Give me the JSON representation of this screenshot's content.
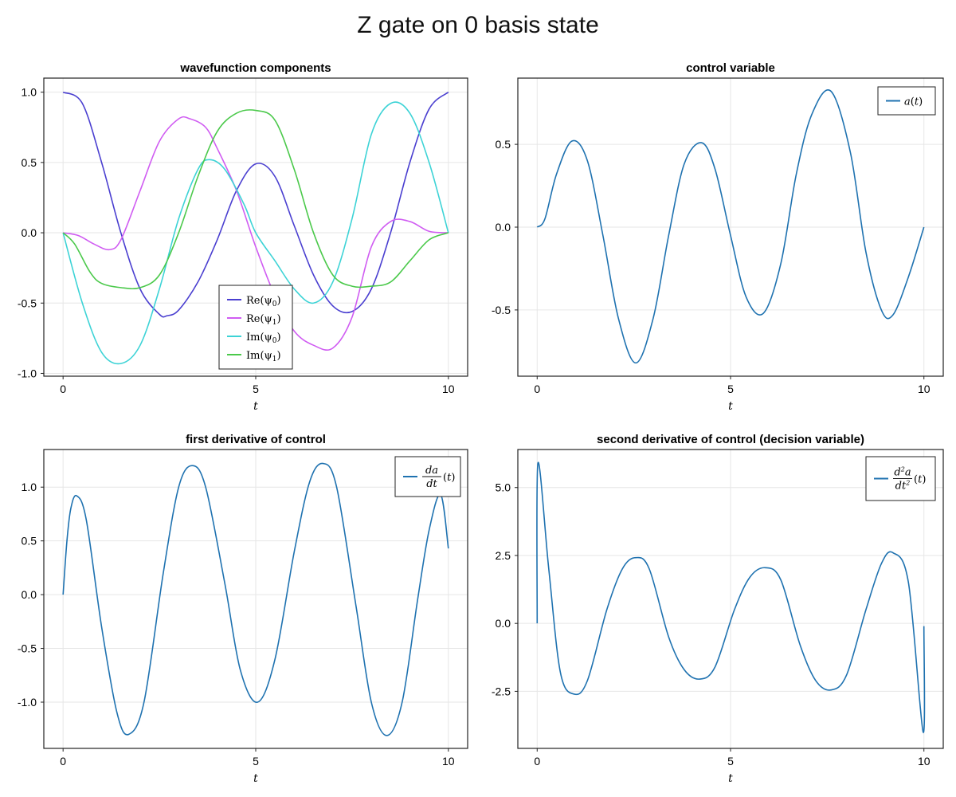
{
  "figure": {
    "title": "Z gate on 0 basis state"
  },
  "colors": {
    "re_psi0": "#4a3fd0",
    "re_psi1": "#d05df2",
    "im_psi0": "#3dd3d6",
    "im_psi1": "#4bc94b",
    "control": "#1f72b0",
    "grid": "#e6e6e6",
    "frame": "#222222"
  },
  "chart_data": [
    {
      "type": "line",
      "title": "wavefunction components",
      "xlabel": "t",
      "ylabel": "",
      "xlim": [
        -0.5,
        10.5
      ],
      "ylim": [
        -1.02,
        1.1
      ],
      "xticks": [
        0,
        5,
        10
      ],
      "yticks": [
        -1.0,
        -0.5,
        0.0,
        0.5,
        1.0
      ],
      "ytick_labels": [
        "-1.0",
        "-0.5",
        "0.0",
        "0.5",
        "1.0"
      ],
      "grid": true,
      "legend_position": "bottom-center",
      "series": [
        {
          "name": "Re(ψ₀)",
          "legend_main": "Re(ψ",
          "legend_sub": "0",
          "color_key": "re_psi0",
          "x": [
            0,
            0.5,
            1,
            1.5,
            2,
            2.5,
            2.7,
            3,
            3.5,
            4,
            4.5,
            5,
            5.5,
            6,
            6.5,
            7,
            7.5,
            8,
            8.5,
            9,
            9.5,
            10
          ],
          "y": [
            1.0,
            0.92,
            0.5,
            0.0,
            -0.4,
            -0.58,
            -0.59,
            -0.55,
            -0.35,
            -0.05,
            0.3,
            0.49,
            0.4,
            0.05,
            -0.3,
            -0.52,
            -0.56,
            -0.4,
            0.0,
            0.5,
            0.88,
            1.0
          ]
        },
        {
          "name": "Re(ψ₁)",
          "legend_main": "Re(ψ",
          "legend_sub": "1",
          "color_key": "re_psi1",
          "x": [
            0,
            0.4,
            0.8,
            1.2,
            1.5,
            2,
            2.5,
            3,
            3.3,
            3.7,
            4,
            4.5,
            5,
            5.5,
            6,
            6.5,
            7,
            7.5,
            8,
            8.5,
            9,
            9.5,
            10
          ],
          "y": [
            0.0,
            -0.02,
            -0.08,
            -0.12,
            -0.05,
            0.3,
            0.65,
            0.81,
            0.81,
            0.75,
            0.6,
            0.3,
            -0.1,
            -0.45,
            -0.7,
            -0.8,
            -0.82,
            -0.6,
            -0.1,
            0.08,
            0.08,
            0.01,
            0.0
          ]
        },
        {
          "name": "Im(ψ₀)",
          "legend_main": "Im(ψ",
          "legend_sub": "0",
          "color_key": "im_psi0",
          "x": [
            0,
            0.5,
            1,
            1.5,
            2,
            2.5,
            3,
            3.5,
            3.8,
            4.2,
            4.7,
            5,
            5.5,
            6,
            6.5,
            7,
            7.5,
            8,
            8.5,
            9,
            9.5,
            10
          ],
          "y": [
            0.0,
            -0.5,
            -0.85,
            -0.93,
            -0.8,
            -0.4,
            0.1,
            0.45,
            0.52,
            0.45,
            0.2,
            0.0,
            -0.2,
            -0.4,
            -0.5,
            -0.35,
            0.1,
            0.7,
            0.92,
            0.85,
            0.5,
            0.0
          ]
        },
        {
          "name": "Im(ψ₁)",
          "legend_main": "Im(ψ",
          "legend_sub": "1",
          "color_key": "im_psi1",
          "x": [
            0,
            0.3,
            0.7,
            1,
            1.5,
            2,
            2.5,
            3,
            3.5,
            4,
            4.5,
            5,
            5.5,
            6,
            6.5,
            7,
            7.5,
            8,
            8.5,
            9,
            9.5,
            10
          ],
          "y": [
            0.0,
            -0.08,
            -0.28,
            -0.36,
            -0.39,
            -0.39,
            -0.3,
            0.0,
            0.4,
            0.72,
            0.85,
            0.87,
            0.8,
            0.45,
            0.0,
            -0.3,
            -0.38,
            -0.38,
            -0.35,
            -0.2,
            -0.05,
            0.0
          ]
        }
      ]
    },
    {
      "type": "line",
      "title": "control variable",
      "xlabel": "t",
      "ylabel": "",
      "xlim": [
        -0.5,
        10.5
      ],
      "ylim": [
        -0.9,
        0.9
      ],
      "xticks": [
        0,
        5,
        10
      ],
      "yticks": [
        -0.5,
        0.0,
        0.5
      ],
      "ytick_labels": [
        "-0.5",
        "0.0",
        "0.5"
      ],
      "grid": true,
      "legend_position": "top-right",
      "series": [
        {
          "name": "a(t)",
          "color_key": "control",
          "legend_kind": "a",
          "x": [
            0,
            0.2,
            0.5,
            0.9,
            1.3,
            1.7,
            2.1,
            2.55,
            3.0,
            3.4,
            3.8,
            4.25,
            4.6,
            5.0,
            5.4,
            5.85,
            6.3,
            6.7,
            7.1,
            7.6,
            8.1,
            8.5,
            8.9,
            9.2,
            9.6,
            10.0
          ],
          "y": [
            0.0,
            0.05,
            0.32,
            0.52,
            0.4,
            -0.05,
            -0.55,
            -0.82,
            -0.55,
            -0.05,
            0.38,
            0.51,
            0.35,
            -0.05,
            -0.42,
            -0.52,
            -0.22,
            0.32,
            0.68,
            0.82,
            0.45,
            -0.15,
            -0.5,
            -0.53,
            -0.3,
            0.0
          ]
        }
      ]
    },
    {
      "type": "line",
      "title": "first derivative of control",
      "xlabel": "t",
      "ylabel": "",
      "xlim": [
        -0.5,
        10.5
      ],
      "ylim": [
        -1.43,
        1.35
      ],
      "xticks": [
        0,
        5,
        10
      ],
      "yticks": [
        -1.0,
        -0.5,
        0.0,
        0.5,
        1.0
      ],
      "ytick_labels": [
        "-1.0",
        "-0.5",
        "0.0",
        "0.5",
        "1.0"
      ],
      "grid": true,
      "legend_position": "top-right",
      "series": [
        {
          "name": "da/dt(t)",
          "color_key": "control",
          "legend_kind": "da",
          "x": [
            0,
            0.1,
            0.2,
            0.35,
            0.6,
            1.0,
            1.4,
            1.7,
            2.1,
            2.6,
            3.0,
            3.35,
            3.7,
            4.2,
            4.6,
            5.05,
            5.5,
            6.0,
            6.4,
            6.75,
            7.1,
            7.6,
            8.0,
            8.4,
            8.8,
            9.2,
            9.5,
            9.8,
            10.0
          ],
          "y": [
            0.0,
            0.5,
            0.8,
            0.92,
            0.7,
            -0.3,
            -1.1,
            -1.3,
            -1.0,
            0.2,
            1.0,
            1.2,
            1.0,
            0.1,
            -0.7,
            -1.0,
            -0.6,
            0.4,
            1.05,
            1.22,
            1.0,
            -0.1,
            -1.0,
            -1.31,
            -1.0,
            -0.05,
            0.6,
            0.93,
            0.43
          ]
        }
      ]
    },
    {
      "type": "line",
      "title": "second derivative of control (decision variable)",
      "xlabel": "t",
      "ylabel": "",
      "xlim": [
        -0.5,
        10.5
      ],
      "ylim": [
        -4.6,
        6.4
      ],
      "xticks": [
        0,
        5,
        10
      ],
      "yticks": [
        -2.5,
        0.0,
        2.5,
        5.0
      ],
      "ytick_labels": [
        "-2.5",
        "0.0",
        "2.5",
        "5.0"
      ],
      "grid": true,
      "legend_position": "top-right",
      "series": [
        {
          "name": "d²a/dt²(t)",
          "color_key": "control",
          "legend_kind": "d2a",
          "x": [
            0,
            0.02,
            0.3,
            0.6,
            0.95,
            1.3,
            1.8,
            2.2,
            2.55,
            2.9,
            3.4,
            3.8,
            4.2,
            4.6,
            5.1,
            5.5,
            5.9,
            6.3,
            6.8,
            7.2,
            7.6,
            8.0,
            8.5,
            8.9,
            9.2,
            9.6,
            9.98,
            10.0
          ],
          "y": [
            0.0,
            5.9,
            2.0,
            -1.8,
            -2.6,
            -2.1,
            0.5,
            2.0,
            2.42,
            2.0,
            -0.5,
            -1.7,
            -2.05,
            -1.6,
            0.5,
            1.7,
            2.05,
            1.6,
            -0.8,
            -2.1,
            -2.45,
            -1.9,
            0.5,
            2.2,
            2.6,
            1.5,
            -4.0,
            -0.1
          ]
        }
      ]
    }
  ]
}
